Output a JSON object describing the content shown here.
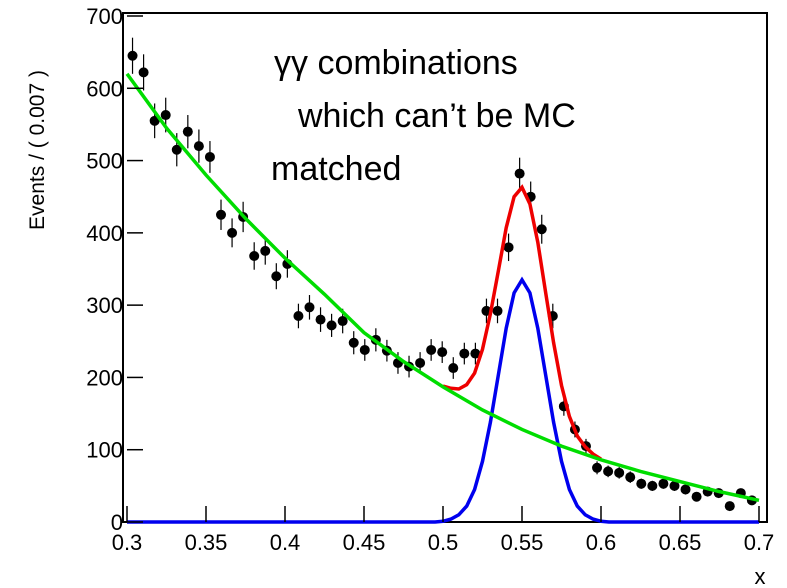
{
  "chart_data": {
    "type": "scatter",
    "ylabel": "Events / ( 0.007 )",
    "xlabel": "x",
    "annotations": [
      "γγ combinations",
      "which can’t be MC",
      "matched"
    ],
    "xlim": [
      0.3,
      0.7
    ],
    "ylim": [
      0,
      700
    ],
    "xticks": [
      0.3,
      0.35,
      0.4,
      0.45,
      0.5,
      0.55,
      0.6,
      0.65,
      0.7
    ],
    "yticks": [
      0,
      100,
      200,
      300,
      400,
      500,
      600,
      700
    ],
    "series": [
      {
        "style": "points",
        "color": "#000000",
        "x": [
          0.3035,
          0.3105,
          0.3175,
          0.3245,
          0.3315,
          0.3385,
          0.3455,
          0.3525,
          0.3595,
          0.3665,
          0.3735,
          0.3805,
          0.3875,
          0.3945,
          0.4015,
          0.4085,
          0.4155,
          0.4225,
          0.4295,
          0.4365,
          0.4435,
          0.4505,
          0.4575,
          0.4645,
          0.4715,
          0.4785,
          0.4855,
          0.4925,
          0.4995,
          0.5065,
          0.5135,
          0.5205,
          0.5275,
          0.5345,
          0.5415,
          0.5485,
          0.5555,
          0.5625,
          0.5695,
          0.5765,
          0.5835,
          0.5905,
          0.5975,
          0.6045,
          0.6115,
          0.6185,
          0.6255,
          0.6325,
          0.6395,
          0.6465,
          0.6535,
          0.6605,
          0.6675,
          0.6745,
          0.6815,
          0.6885,
          0.6955
        ],
        "values": [
          645,
          622,
          555,
          563,
          515,
          540,
          520,
          505,
          425,
          400,
          422,
          368,
          375,
          340,
          357,
          285,
          297,
          280,
          272,
          278,
          248,
          238,
          252,
          237,
          220,
          215,
          220,
          238,
          235,
          213,
          233,
          233,
          292,
          292,
          380,
          482,
          450,
          405,
          285,
          160,
          128,
          105,
          75,
          70,
          68,
          62,
          53,
          50,
          53,
          50,
          45,
          35,
          42,
          40,
          22,
          40,
          30
        ],
        "errors": [
          25,
          25,
          24,
          24,
          23,
          23,
          23,
          22,
          21,
          20,
          21,
          19,
          19,
          18,
          19,
          17,
          17,
          17,
          16,
          17,
          16,
          15,
          16,
          15,
          15,
          15,
          15,
          15,
          15,
          15,
          15,
          15,
          17,
          17,
          19,
          22,
          21,
          20,
          17,
          13,
          11,
          10,
          9,
          8,
          8,
          8,
          7,
          7,
          7,
          7,
          7,
          6,
          6,
          6,
          5,
          6,
          5
        ]
      },
      {
        "style": "line",
        "color": "#00dd00",
        "x": [
          0.3,
          0.325,
          0.35,
          0.375,
          0.4,
          0.425,
          0.45,
          0.475,
          0.5,
          0.525,
          0.55,
          0.575,
          0.6,
          0.625,
          0.65,
          0.675,
          0.7
        ],
        "values": [
          620,
          545,
          480,
          420,
          365,
          315,
          262,
          222,
          187,
          155,
          128,
          105,
          86,
          70,
          56,
          42,
          30
        ]
      },
      {
        "style": "line",
        "color": "#0000ee",
        "x": [
          0.3,
          0.495,
          0.5,
          0.505,
          0.51,
          0.515,
          0.52,
          0.525,
          0.53,
          0.535,
          0.54,
          0.545,
          0.55,
          0.555,
          0.56,
          0.565,
          0.57,
          0.575,
          0.58,
          0.585,
          0.59,
          0.595,
          0.6,
          0.605,
          0.7
        ],
        "values": [
          0,
          0,
          1,
          4,
          10,
          22,
          45,
          84,
          138,
          203,
          268,
          317,
          335,
          317,
          268,
          203,
          138,
          84,
          45,
          22,
          10,
          4,
          1,
          0,
          0
        ]
      },
      {
        "style": "line",
        "color": "#ee0000",
        "x": [
          0.5,
          0.505,
          0.51,
          0.515,
          0.52,
          0.525,
          0.53,
          0.535,
          0.54,
          0.545,
          0.55,
          0.555,
          0.56,
          0.565,
          0.57,
          0.575,
          0.58,
          0.585,
          0.59,
          0.595,
          0.6
        ],
        "values": [
          188,
          185,
          184,
          190,
          206,
          239,
          288,
          347,
          407,
          450,
          463,
          440,
          387,
          317,
          248,
          189,
          146,
          119,
          104,
          94,
          87
        ]
      }
    ]
  }
}
